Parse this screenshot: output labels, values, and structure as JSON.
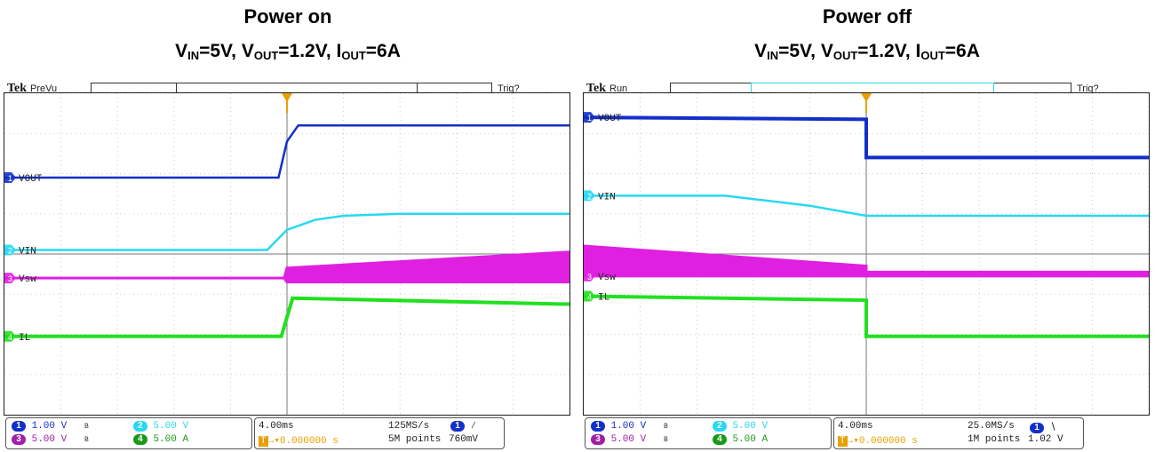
{
  "panels": [
    {
      "title": "Power on",
      "subtitle_parts": {
        "vin": "V",
        "vin_sub": "IN",
        "vin_val": "=5V, ",
        "vout": "V",
        "vout_sub": "OUT",
        "vout_val": "=1.2V, ",
        "iout": "I",
        "iout_sub": "OUT",
        "iout_val": "=6A"
      },
      "scope": {
        "brand": "Tek",
        "status": "PreVu",
        "trigger_state": "Trig?",
        "channels": [
          {
            "num": "1",
            "label": "VOUT",
            "color": "#1230c8"
          },
          {
            "num": "2",
            "label": "VIN",
            "color": "#28d8ef"
          },
          {
            "num": "3",
            "label": "Vsw",
            "color": "#e020e0"
          },
          {
            "num": "4",
            "label": "IL",
            "color": "#22e020"
          }
        ],
        "readout": {
          "ch1_scale": "1.00 V",
          "ch2_scale": "5.00 V",
          "ch3_scale": "5.00 V",
          "ch4_scale": "5.00 A",
          "timebase": "4.00ms",
          "sample_rate": "125MS/s",
          "trigger_pos": "▾0.000000 s",
          "record_length": "5M points",
          "trigger_ch": "1",
          "trigger_slope": "∕",
          "trigger_level": "760mV"
        }
      }
    },
    {
      "title": "Power off",
      "subtitle_parts": {
        "vin": "V",
        "vin_sub": "IN",
        "vin_val": "=5V, ",
        "vout": "V",
        "vout_sub": "OUT",
        "vout_val": "=1.2V, ",
        "iout": "I",
        "iout_sub": "OUT",
        "iout_val": "=6A"
      },
      "scope": {
        "brand": "Tek",
        "status": "Run",
        "trigger_state": "Trig?",
        "channels": [
          {
            "num": "1",
            "label": "VOUT",
            "color": "#1230c8"
          },
          {
            "num": "2",
            "label": "VIN",
            "color": "#28d8ef"
          },
          {
            "num": "3",
            "label": "Vsw",
            "color": "#e020e0"
          },
          {
            "num": "4",
            "label": "IL",
            "color": "#22e020"
          }
        ],
        "readout": {
          "ch1_scale": "1.00 V",
          "ch2_scale": "5.00 V",
          "ch3_scale": "5.00 V",
          "ch4_scale": "5.00 A",
          "timebase": "4.00ms",
          "sample_rate": "25.0MS/s",
          "trigger_pos": "▾0.000000 s",
          "record_length": "1M points",
          "trigger_ch": "1",
          "trigger_slope": "∖",
          "trigger_level": "1.02 V"
        }
      }
    }
  ],
  "chart_data": [
    {
      "type": "line",
      "title": "Power on",
      "x_unit": "divisions (4.00ms/div)",
      "xlim": [
        -5,
        5
      ],
      "ylim": [
        -4,
        4
      ],
      "grid": true,
      "series": [
        {
          "name": "VOUT",
          "x": [
            -5,
            -0.15,
            0,
            0.2,
            5
          ],
          "y": [
            1.9,
            1.9,
            2.8,
            3.2,
            3.2
          ]
        },
        {
          "name": "VIN",
          "x": [
            -5,
            -0.35,
            0,
            0.5,
            1.0,
            2.0,
            5
          ],
          "y": [
            0.1,
            0.1,
            0.6,
            0.85,
            0.95,
            1.0,
            1.0
          ]
        },
        {
          "name": "Vsw",
          "x": [
            -5,
            -0.05,
            0,
            5
          ],
          "y": [
            -0.6,
            -0.6,
            -0.7,
            -0.7
          ],
          "band_top": [
            -0.6,
            -0.6,
            -0.35,
            0.05
          ]
        },
        {
          "name": "IL",
          "x": [
            -5,
            -0.1,
            0.1,
            5
          ],
          "y": [
            -2.05,
            -2.05,
            -1.1,
            -1.25
          ]
        }
      ]
    },
    {
      "type": "line",
      "title": "Power off",
      "x_unit": "divisions (4.00ms/div)",
      "xlim": [
        -5,
        5
      ],
      "ylim": [
        -4,
        4
      ],
      "grid": true,
      "series": [
        {
          "name": "VOUT",
          "x": [
            -5,
            0,
            0,
            5
          ],
          "y": [
            3.4,
            3.35,
            2.4,
            2.4
          ]
        },
        {
          "name": "VIN",
          "x": [
            -5,
            -2.5,
            -1.0,
            0,
            5
          ],
          "y": [
            1.45,
            1.45,
            1.2,
            0.95,
            0.95
          ]
        },
        {
          "name": "Vsw",
          "x": [
            -5,
            0,
            0,
            5
          ],
          "y": [
            -0.55,
            -0.55,
            -0.55,
            -0.55
          ],
          "band_top": [
            0.2,
            -0.3,
            -0.45,
            -0.45
          ]
        },
        {
          "name": "IL",
          "x": [
            -5,
            0,
            0,
            5
          ],
          "y": [
            -1.05,
            -1.15,
            -2.05,
            -2.05
          ]
        }
      ]
    }
  ]
}
